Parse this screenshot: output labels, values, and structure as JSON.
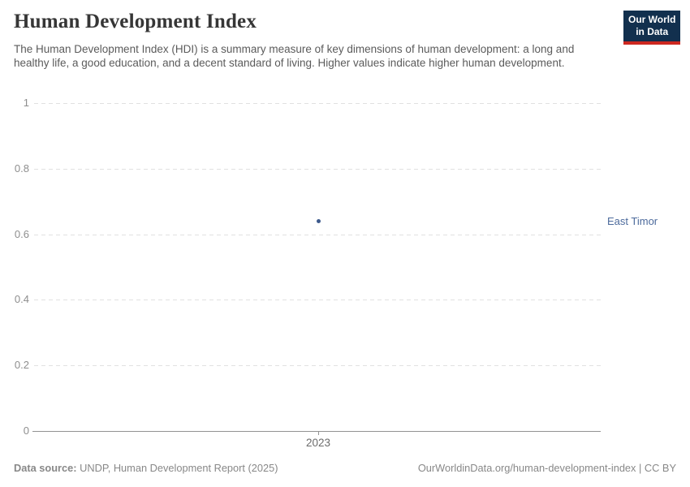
{
  "header": {
    "title": "Human Development Index",
    "subtitle": "The Human Development Index (HDI) is a summary measure of key dimensions of human development: a long and healthy life, a good education, and a decent standard of living. Higher values indicate higher human development.",
    "logo": {
      "line1": "Our World",
      "line2": "in Data",
      "bg_color": "#12304e",
      "stripe_color": "#cd2820"
    }
  },
  "chart_data": {
    "type": "scatter",
    "title": "Human Development Index",
    "x": [
      2023
    ],
    "xtick_labels": [
      "2023"
    ],
    "series": [
      {
        "name": "East Timor",
        "values": [
          0.64
        ],
        "color": "#4c6a9c",
        "dot_color": "#3d5a8c"
      }
    ],
    "xlabel": "",
    "ylabel": "",
    "ylim": [
      0,
      1
    ],
    "yticks": [
      0,
      0.2,
      0.4,
      0.6,
      0.8,
      1
    ],
    "ytick_labels": [
      "0",
      "0.2",
      "0.4",
      "0.6",
      "0.8",
      "1"
    ],
    "grid": "horizontal-dashed",
    "legend_position": "right-of-point",
    "entity_label": "East Timor"
  },
  "footer": {
    "datasource_label": "Data source:",
    "datasource_value": "UNDP, Human Development Report (2025)",
    "attribution": "OurWorldinData.org/human-development-index | CC BY"
  },
  "colors": {
    "title_text": "#363636",
    "subtitle_text": "#5b5b5b",
    "axis_text": "#8e8e8e",
    "gridline": "#e1e1e1",
    "axis_line": "#929292",
    "footer_text": "#888888"
  }
}
